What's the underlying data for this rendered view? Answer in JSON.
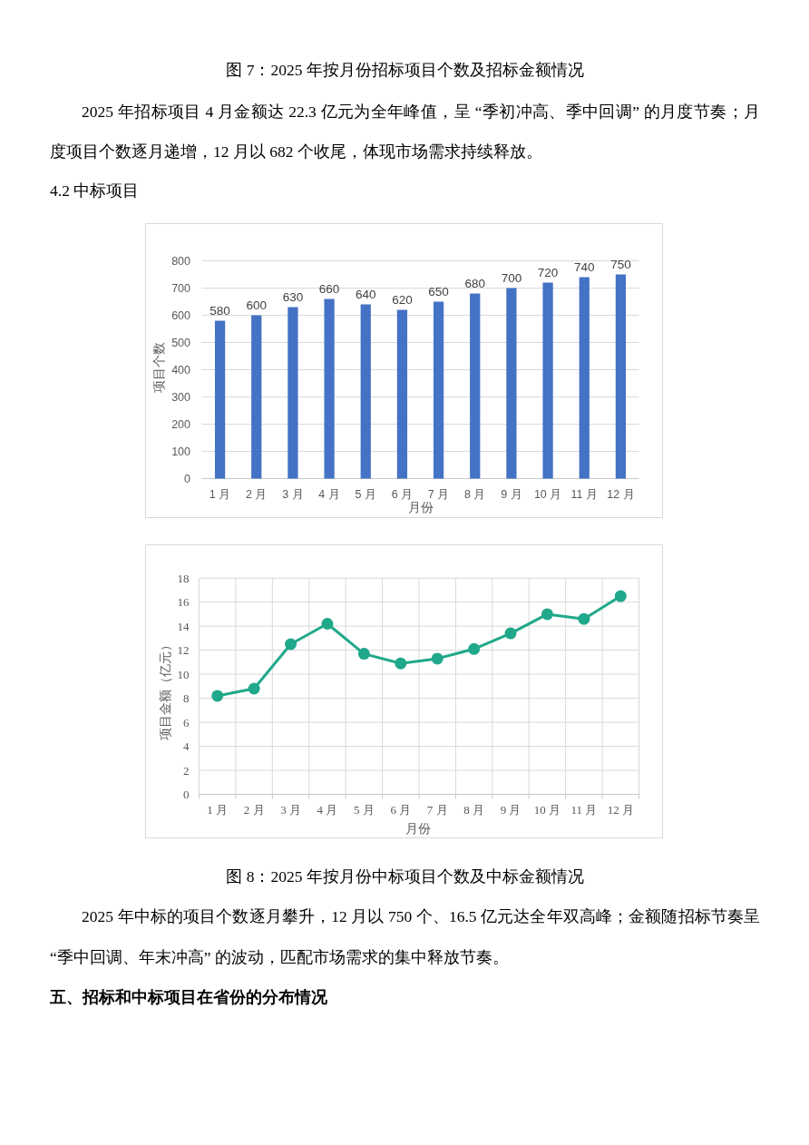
{
  "chart_data": [
    {
      "type": "bar",
      "categories": [
        "1 月",
        "2 月",
        "3 月",
        "4 月",
        "5 月",
        "6 月",
        "7 月",
        "8 月",
        "9 月",
        "10 月",
        "11 月",
        "12 月"
      ],
      "values": [
        580,
        600,
        630,
        660,
        640,
        620,
        650,
        680,
        700,
        720,
        740,
        750
      ],
      "color": "#4472c4",
      "xlabel": "月份",
      "ylabel": "项目个数",
      "ylim": [
        0,
        800
      ],
      "yticks": [
        0,
        100,
        200,
        300,
        400,
        500,
        600,
        700,
        800
      ],
      "grid": "y",
      "data_labels": true,
      "annotations": [
        "图 7：2025 年按月份招标项目个数及招标金额情况",
        "2025 年招标项目 4 月金额达 22.3 亿元为全年峰值，呈 “季初冲高、季中回调” 的月度节奏；月度项目个数逐月递增，12 月以 682 个收尾，体现市场需求持续释放。",
        "4.2 中标项目"
      ]
    },
    {
      "type": "line",
      "categories": [
        "1 月",
        "2 月",
        "3 月",
        "4 月",
        "5 月",
        "6 月",
        "7 月",
        "8 月",
        "9 月",
        "10 月",
        "11 月",
        "12 月"
      ],
      "values": [
        8.2,
        8.8,
        12.5,
        14.2,
        11.7,
        10.9,
        11.3,
        12.1,
        13.4,
        15.0,
        14.6,
        16.5
      ],
      "color": "#20a88a",
      "xlabel": "月份",
      "ylabel": "项目金额（亿元）",
      "ylim": [
        0,
        18
      ],
      "yticks": [
        0,
        2,
        4,
        6,
        8,
        10,
        12,
        14,
        16,
        18
      ],
      "grid": true,
      "marker": "circle",
      "annotations": [
        "图 8：2025 年按月份中标项目个数及中标金额情况",
        "2025 年中标的项目个数逐月攀升，12 月以 750 个、16.5 亿元达全年双高峰；金额随招标节奏呈 “季中回调、年末冲高” 的波动，匹配市场需求的集中释放节奏。",
        "五、招标和中标项目在省份的分布情况"
      ]
    }
  ]
}
